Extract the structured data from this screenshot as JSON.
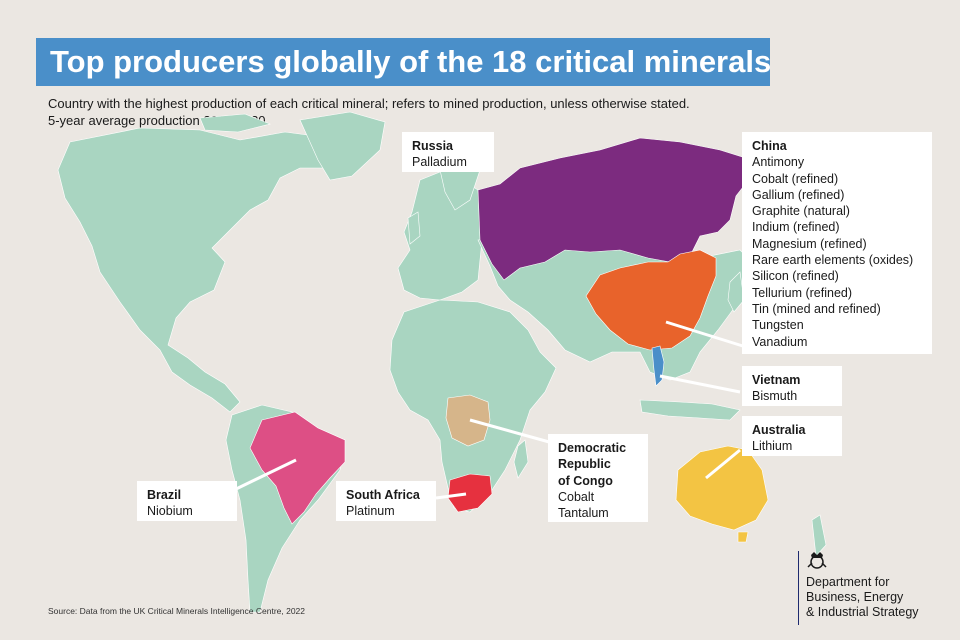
{
  "title": "Top producers globally of the 18 critical minerals",
  "subtitle": {
    "line1": "Country with the highest production of each critical mineral; refers to mined production, unless otherwise stated.",
    "line2": "5-year average production 2016-2020."
  },
  "colors": {
    "land": "#a9d5c1",
    "background": "#ebe7e2",
    "russia": "#7c2b7f",
    "china": "#e8632b",
    "vietnam": "#4a8fc9",
    "australia": "#f3c443",
    "drc": "#d6b58a",
    "south_africa": "#e6313f",
    "brazil": "#dd4f85",
    "title_bar": "#4a8fc9"
  },
  "labels": {
    "russia": {
      "country": "Russia",
      "minerals": [
        "Palladium"
      ]
    },
    "china": {
      "country": "China",
      "minerals": [
        "Antimony",
        "Cobalt (refined)",
        "Gallium (refined)",
        "Graphite (natural)",
        "Indium (refined)",
        "Magnesium (refined)",
        "Rare earth elements (oxides)",
        "Silicon (refined)",
        "Tellurium (refined)",
        "Tin (mined and refined)",
        "Tungsten",
        "Vanadium"
      ]
    },
    "vietnam": {
      "country": "Vietnam",
      "minerals": [
        "Bismuth"
      ]
    },
    "australia": {
      "country": "Australia",
      "minerals": [
        "Lithium"
      ]
    },
    "drc": {
      "country_lines": [
        "Democratic",
        "Republic",
        "of Congo"
      ],
      "minerals": [
        "Cobalt",
        "Tantalum"
      ]
    },
    "south_africa": {
      "country": "South Africa",
      "minerals": [
        "Platinum"
      ]
    },
    "brazil": {
      "country": "Brazil",
      "minerals": [
        "Niobium"
      ]
    }
  },
  "source": "Source: Data from the UK Critical Minerals Intelligence Centre, 2022",
  "department": {
    "lines": [
      "Department for",
      "Business, Energy",
      "& Industrial Strategy"
    ]
  }
}
